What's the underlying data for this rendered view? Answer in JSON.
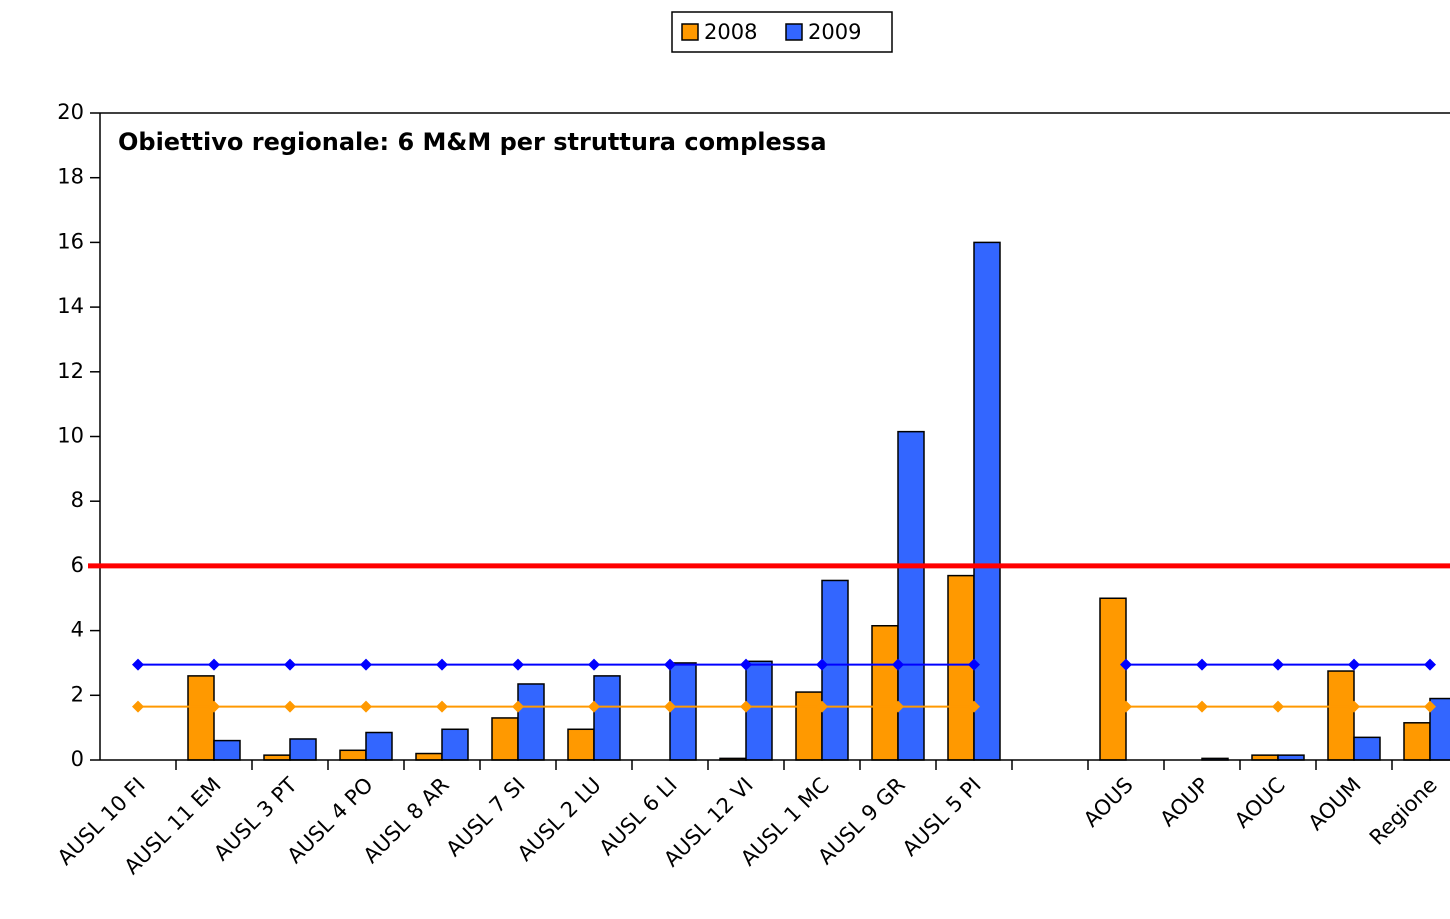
{
  "chart_data": {
    "type": "bar",
    "categories": [
      "AUSL 10 FI",
      "AUSL 11 EM",
      "AUSL 3 PT",
      "AUSL 4 PO",
      "AUSL 8 AR",
      "AUSL 7 SI",
      "AUSL 2 LU",
      "AUSL 6 LI",
      "AUSL 12 VI",
      "AUSL 1 MC",
      "AUSL 9 GR",
      "AUSL 5 PI",
      null,
      "AOUS",
      "AOUP",
      "AOUC",
      "AOUM",
      "Regione"
    ],
    "series": [
      {
        "name": "2008",
        "color": "#ff9900",
        "values": [
          0,
          2.6,
          0.15,
          0.3,
          0.2,
          1.3,
          0.95,
          0,
          0.05,
          2.1,
          4.15,
          5.7,
          null,
          5.0,
          0,
          0.15,
          2.75,
          1.15
        ]
      },
      {
        "name": "2009",
        "color": "#3366ff",
        "values": [
          0,
          0.6,
          0.65,
          0.85,
          0.95,
          2.35,
          2.6,
          3.0,
          3.05,
          5.55,
          10.15,
          16.0,
          null,
          0,
          0.05,
          0.15,
          0.7,
          1.9
        ]
      }
    ],
    "reference_lines": [
      {
        "color": "#ff9900",
        "values": [
          1.65,
          1.65,
          1.65,
          1.65,
          1.65,
          1.65,
          1.65,
          1.65,
          1.65,
          1.65,
          1.65,
          1.65,
          null,
          1.65,
          1.65,
          1.65,
          1.65,
          1.65
        ]
      },
      {
        "color": "#0000ff",
        "values": [
          2.95,
          2.95,
          2.95,
          2.95,
          2.95,
          2.95,
          2.95,
          2.95,
          2.95,
          2.95,
          2.95,
          2.95,
          null,
          2.95,
          2.95,
          2.95,
          2.95,
          2.95
        ]
      }
    ],
    "target": {
      "value": 6,
      "color": "#ff0000",
      "label": "Obiettivo regionale: 6 M&M per struttura complessa"
    },
    "ylim": [
      0,
      20
    ],
    "yticks": [
      0,
      2,
      4,
      6,
      8,
      10,
      12,
      14,
      16,
      18,
      20
    ],
    "grid": false,
    "legend": "top"
  }
}
